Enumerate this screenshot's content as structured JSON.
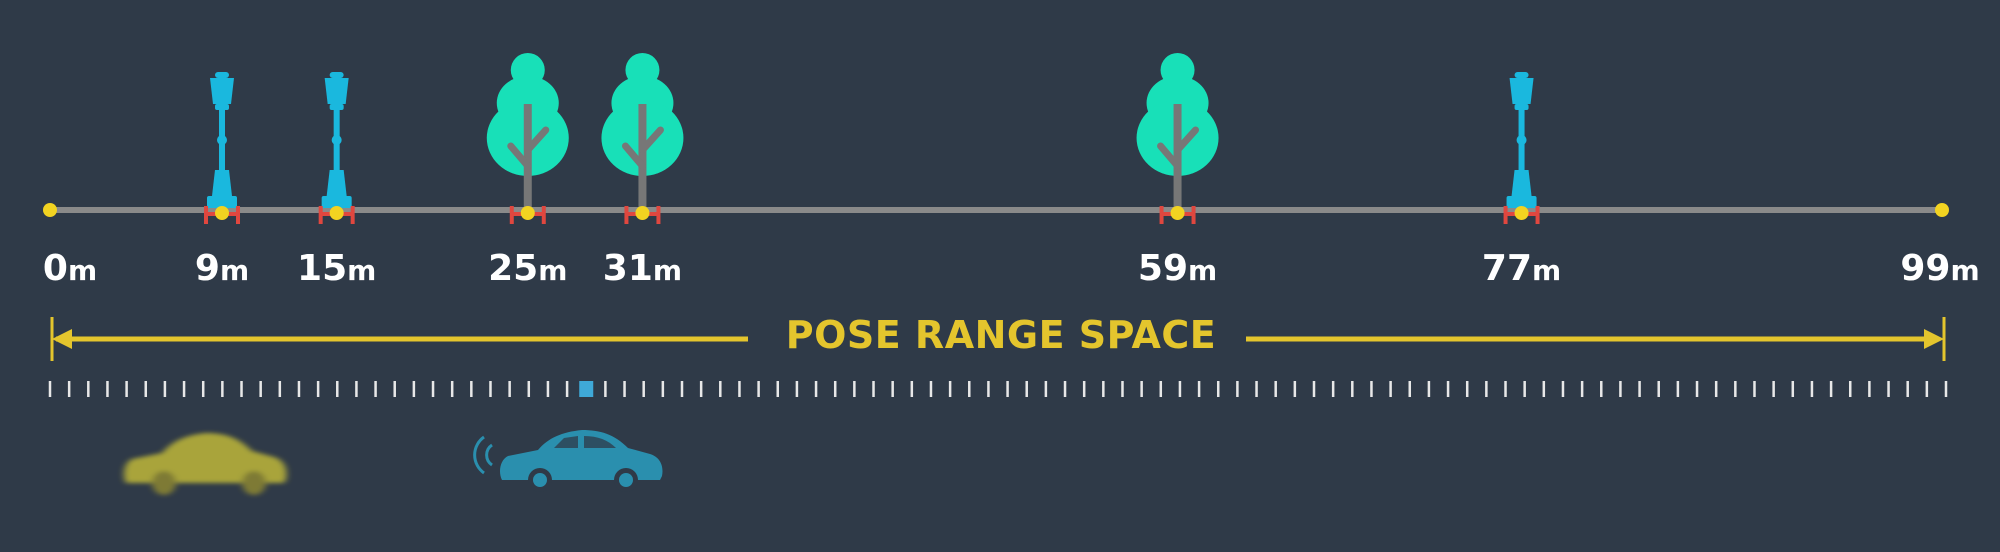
{
  "colors": {
    "background": "#2f3a48",
    "track": "#8a8a8a",
    "endpoint": "#f2d321",
    "lamp": "#1ab8de",
    "tree_foliage": "#18e0b8",
    "trunk": "#777777",
    "bracket": "#e0473f",
    "range_line": "#e4c52d",
    "tick": "#e8e8e8",
    "current_tick": "#3fa9d8",
    "ghost_car": "#a9a43a",
    "car": "#2a8fae"
  },
  "track": {
    "min_m": 0,
    "max_m": 99
  },
  "landmarks": [
    {
      "distance_m": 9,
      "label": "9",
      "unit": "m",
      "kind": "lamp",
      "icon": "street-lamp-icon"
    },
    {
      "distance_m": 15,
      "label": "15",
      "unit": "m",
      "kind": "lamp",
      "icon": "street-lamp-icon"
    },
    {
      "distance_m": 25,
      "label": "25",
      "unit": "m",
      "kind": "tree",
      "icon": "tree-icon"
    },
    {
      "distance_m": 31,
      "label": "31",
      "unit": "m",
      "kind": "tree",
      "icon": "tree-icon"
    },
    {
      "distance_m": 59,
      "label": "59",
      "unit": "m",
      "kind": "tree",
      "icon": "tree-icon"
    },
    {
      "distance_m": 77,
      "label": "77",
      "unit": "m",
      "kind": "lamp",
      "icon": "street-lamp-icon"
    }
  ],
  "endpoints": [
    {
      "distance_m": 0,
      "label": "0",
      "unit": "m"
    },
    {
      "distance_m": 99,
      "label": "99",
      "unit": "m"
    }
  ],
  "range": {
    "title": "POSE RANGE SPACE"
  },
  "ticks": {
    "count": 100,
    "highlight_index": 28
  },
  "vehicles": {
    "ghost_car_icon": "ghost-car-icon",
    "car_icon": "car-icon",
    "signal_icon": "signal-waves-icon"
  }
}
